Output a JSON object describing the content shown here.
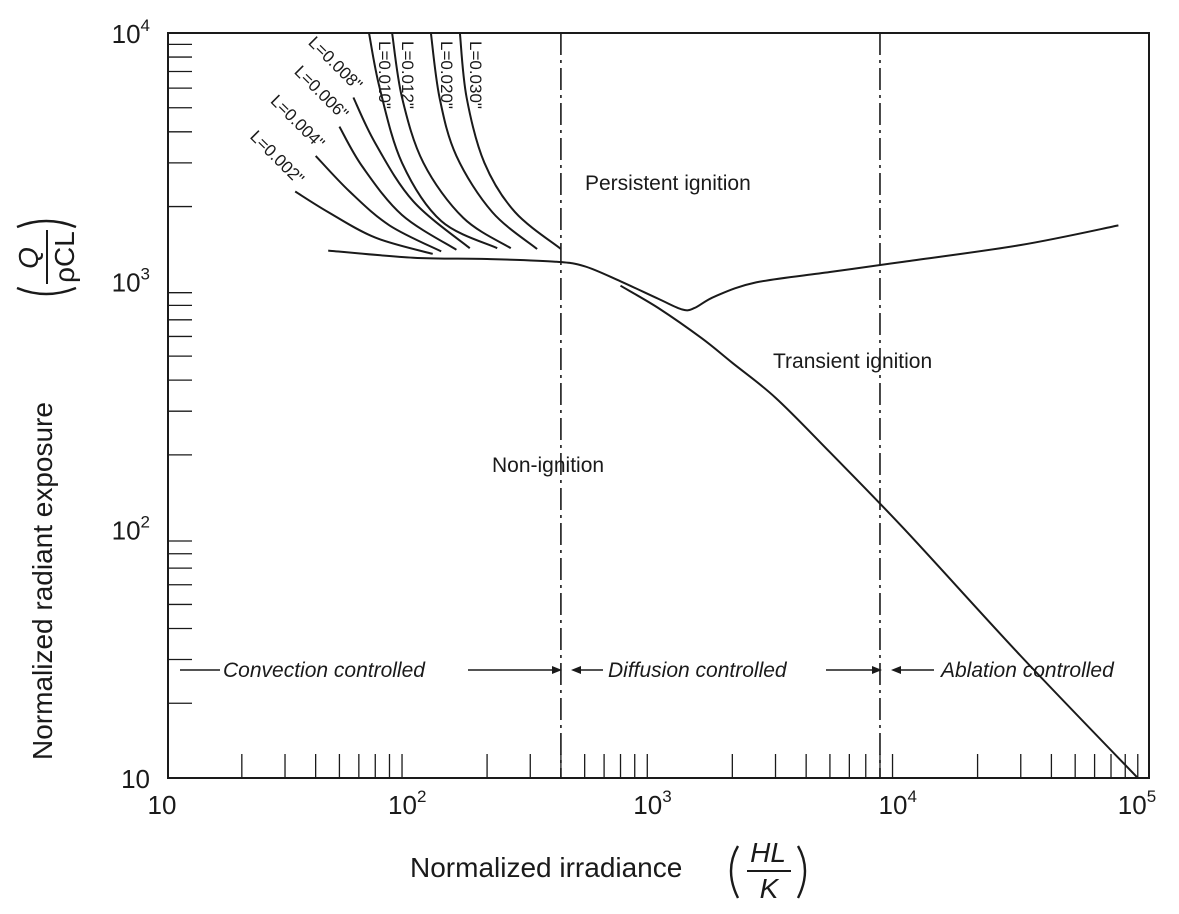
{
  "chart_data": {
    "type": "line",
    "x_scale": "log",
    "y_scale": "log",
    "xlim": [
      10,
      100000
    ],
    "ylim": [
      10,
      10000
    ],
    "x_ticks": [
      {
        "value": 10,
        "base": "10",
        "exp": ""
      },
      {
        "value": 100,
        "base": "10",
        "exp": "2"
      },
      {
        "value": 1000,
        "base": "10",
        "exp": "3"
      },
      {
        "value": 10000,
        "base": "10",
        "exp": "4"
      },
      {
        "value": 100000,
        "base": "10",
        "exp": "5"
      }
    ],
    "y_ticks": [
      {
        "value": 10,
        "base": "10",
        "exp": ""
      },
      {
        "value": 100,
        "base": "10",
        "exp": "2"
      },
      {
        "value": 1000,
        "base": "10",
        "exp": "3"
      },
      {
        "value": 10000,
        "base": "10",
        "exp": "4"
      }
    ],
    "xlabel": {
      "text": "Normalized irradiance",
      "frac_num": "HL",
      "frac_den": "K"
    },
    "ylabel": {
      "text": "Normalized radiant exposure",
      "frac_num": "Q",
      "frac_den": "ρCL"
    },
    "grid": false,
    "series": [
      {
        "name": "",
        "role": "ignition-boundary",
        "points": [
          [
            45,
            1330
          ],
          [
            100,
            1245
          ],
          [
            200,
            1230
          ],
          [
            380,
            1200
          ],
          [
            500,
            1150
          ],
          [
            700,
            1000
          ],
          [
            1000,
            850
          ],
          [
            1250,
            770
          ],
          [
            1400,
            780
          ],
          [
            1700,
            870
          ],
          [
            2500,
            990
          ],
          [
            5000,
            1090
          ],
          [
            10000,
            1200
          ],
          [
            30000,
            1400
          ],
          [
            75000,
            1680
          ]
        ]
      },
      {
        "name": "",
        "role": "transient-boundary",
        "points": [
          [
            700,
            960
          ],
          [
            1000,
            780
          ],
          [
            1500,
            590
          ],
          [
            2000,
            470
          ],
          [
            3000,
            340
          ],
          [
            5000,
            205
          ],
          [
            10000,
            101
          ],
          [
            30000,
            31
          ],
          [
            90000,
            10
          ]
        ]
      },
      {
        "name": "L=0.002\"",
        "points": [
          [
            33,
            2300
          ],
          [
            45,
            1900
          ],
          [
            70,
            1500
          ],
          [
            120,
            1290
          ]
        ]
      },
      {
        "name": "L=0.004\"",
        "points": [
          [
            40,
            3200
          ],
          [
            55,
            2300
          ],
          [
            80,
            1680
          ],
          [
            130,
            1320
          ]
        ]
      },
      {
        "name": "L=0.006\"",
        "points": [
          [
            50,
            4200
          ],
          [
            62,
            2900
          ],
          [
            90,
            1850
          ],
          [
            150,
            1340
          ]
        ]
      },
      {
        "name": "L=0.008\"",
        "points": [
          [
            57,
            5500
          ],
          [
            70,
            3600
          ],
          [
            100,
            2100
          ],
          [
            170,
            1360
          ]
        ]
      },
      {
        "name": "L=0.010\"",
        "points": [
          [
            66,
            10000
          ],
          [
            73,
            6000
          ],
          [
            90,
            3000
          ],
          [
            130,
            1750
          ],
          [
            220,
            1360
          ]
        ]
      },
      {
        "name": "L=0.012\"",
        "points": [
          [
            82,
            10000
          ],
          [
            90,
            5500
          ],
          [
            110,
            3000
          ],
          [
            160,
            1800
          ],
          [
            250,
            1360
          ]
        ]
      },
      {
        "name": "L=0.020\"",
        "points": [
          [
            118,
            10000
          ],
          [
            128,
            5500
          ],
          [
            150,
            3200
          ],
          [
            210,
            1900
          ],
          [
            320,
            1350
          ]
        ]
      },
      {
        "name": "L=0.030\"",
        "points": [
          [
            155,
            10000
          ],
          [
            165,
            5500
          ],
          [
            195,
            3000
          ],
          [
            260,
            1900
          ],
          [
            400,
            1350
          ]
        ]
      }
    ],
    "vlines": [
      400,
      8000
    ],
    "annotations": {
      "persistent": "Persistent ignition",
      "transient": "Transient ignition",
      "non_ignition": "Non-ignition"
    },
    "regions": [
      "Convection controlled",
      "Diffusion controlled",
      "Ablation controlled"
    ]
  }
}
